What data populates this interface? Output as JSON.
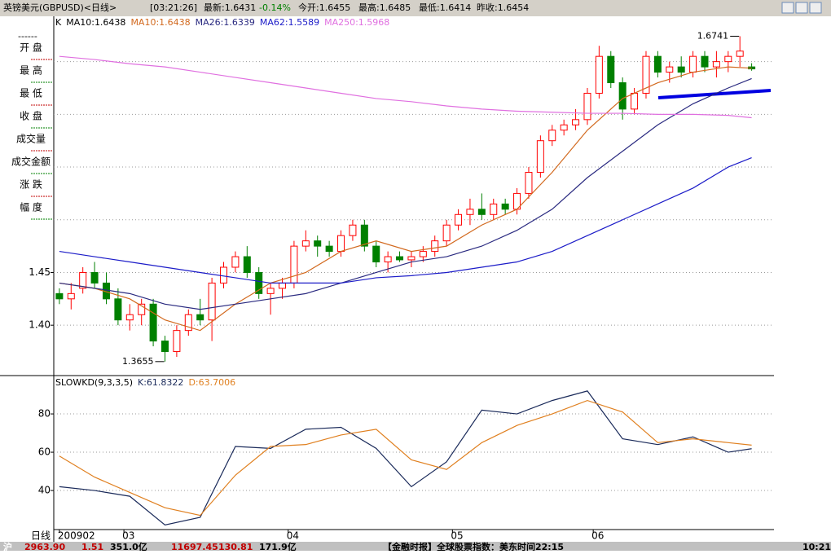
{
  "header": {
    "title": "英镑美元(GBPUSD)<日线>",
    "time": "[03:21:26]",
    "items": [
      "最新:1.6431",
      "-0.14%",
      "今开:1.6455",
      "最高:1.6485",
      "最低:1.6414",
      "昨收:1.6454"
    ]
  },
  "sidebar": {
    "labels": [
      "开 盘",
      "最 高",
      "最 低",
      "收 盘",
      "成交量",
      "成交金额",
      "涨 跌",
      "幅 度"
    ],
    "axis_label": "日线"
  },
  "status": [
    "沪",
    "2963.90",
    "1.51",
    "351.0亿",
    "11697.45",
    "130.81",
    "171.9亿",
    "【金融时报】全球股票指数：美东时间22:15",
    "10:21"
  ],
  "chart_data": [
    {
      "type": "candlestick",
      "legend_text": [
        "K",
        "MA10:1.6438"
      ],
      "up_color": "#ff0000",
      "down_color": "#008000",
      "ylim": [
        1.353,
        1.693
      ],
      "yticks": [
        {
          "value": 1.45,
          "label": "1.45"
        },
        {
          "value": 1.4,
          "label": "1.40"
        }
      ],
      "ygrid": [
        1.4,
        1.45,
        1.5,
        1.55,
        1.6,
        1.65
      ],
      "xlim": [
        -0.2,
        60
      ],
      "candles": [
        [
          1.43,
          1.435,
          1.42,
          1.425
        ],
        [
          1.425,
          1.44,
          1.415,
          1.43
        ],
        [
          1.435,
          1.455,
          1.43,
          1.45
        ],
        [
          1.45,
          1.46,
          1.435,
          1.44
        ],
        [
          1.44,
          1.45,
          1.42,
          1.425
        ],
        [
          1.425,
          1.435,
          1.4,
          1.405
        ],
        [
          1.405,
          1.42,
          1.395,
          1.41
        ],
        [
          1.41,
          1.425,
          1.4,
          1.42
        ],
        [
          1.42,
          1.425,
          1.38,
          1.385
        ],
        [
          1.385,
          1.39,
          1.3655,
          1.375
        ],
        [
          1.375,
          1.4,
          1.37,
          1.395
        ],
        [
          1.395,
          1.415,
          1.39,
          1.41
        ],
        [
          1.41,
          1.425,
          1.4,
          1.405
        ],
        [
          1.405,
          1.445,
          1.385,
          1.44
        ],
        [
          1.44,
          1.46,
          1.435,
          1.455
        ],
        [
          1.455,
          1.47,
          1.45,
          1.465
        ],
        [
          1.465,
          1.475,
          1.445,
          1.45
        ],
        [
          1.45,
          1.455,
          1.425,
          1.43
        ],
        [
          1.43,
          1.44,
          1.41,
          1.435
        ],
        [
          1.435,
          1.445,
          1.425,
          1.44
        ],
        [
          1.44,
          1.48,
          1.435,
          1.475
        ],
        [
          1.475,
          1.49,
          1.47,
          1.48
        ],
        [
          1.48,
          1.485,
          1.465,
          1.475
        ],
        [
          1.475,
          1.48,
          1.465,
          1.47
        ],
        [
          1.47,
          1.49,
          1.465,
          1.485
        ],
        [
          1.485,
          1.5,
          1.48,
          1.495
        ],
        [
          1.495,
          1.5,
          1.47,
          1.475
        ],
        [
          1.475,
          1.48,
          1.455,
          1.46
        ],
        [
          1.46,
          1.47,
          1.45,
          1.465
        ],
        [
          1.465,
          1.47,
          1.46,
          1.462
        ],
        [
          1.462,
          1.47,
          1.455,
          1.465
        ],
        [
          1.465,
          1.475,
          1.46,
          1.47
        ],
        [
          1.47,
          1.485,
          1.465,
          1.48
        ],
        [
          1.48,
          1.5,
          1.475,
          1.495
        ],
        [
          1.495,
          1.51,
          1.49,
          1.505
        ],
        [
          1.505,
          1.52,
          1.495,
          1.51
        ],
        [
          1.51,
          1.525,
          1.5,
          1.505
        ],
        [
          1.505,
          1.52,
          1.5,
          1.515
        ],
        [
          1.515,
          1.52,
          1.505,
          1.51
        ],
        [
          1.51,
          1.53,
          1.505,
          1.525
        ],
        [
          1.525,
          1.55,
          1.52,
          1.545
        ],
        [
          1.545,
          1.58,
          1.54,
          1.575
        ],
        [
          1.575,
          1.59,
          1.57,
          1.585
        ],
        [
          1.585,
          1.595,
          1.58,
          1.59
        ],
        [
          1.59,
          1.605,
          1.585,
          1.595
        ],
        [
          1.595,
          1.625,
          1.59,
          1.62
        ],
        [
          1.62,
          1.665,
          1.615,
          1.655
        ],
        [
          1.655,
          1.66,
          1.625,
          1.63
        ],
        [
          1.63,
          1.635,
          1.595,
          1.605
        ],
        [
          1.605,
          1.625,
          1.6,
          1.62
        ],
        [
          1.62,
          1.66,
          1.615,
          1.655
        ],
        [
          1.655,
          1.66,
          1.635,
          1.64
        ],
        [
          1.64,
          1.65,
          1.63,
          1.645
        ],
        [
          1.645,
          1.655,
          1.635,
          1.64
        ],
        [
          1.64,
          1.66,
          1.635,
          1.655
        ],
        [
          1.655,
          1.66,
          1.64,
          1.645
        ],
        [
          1.645,
          1.66,
          1.635,
          1.65
        ],
        [
          1.65,
          1.66,
          1.64,
          1.655
        ],
        [
          1.655,
          1.6741,
          1.645,
          1.66
        ],
        [
          1.645,
          1.6485,
          1.6414,
          1.6431
        ]
      ],
      "x": [
        0,
        3,
        6,
        9,
        12,
        15,
        18,
        21,
        24,
        27,
        30,
        33,
        36,
        39,
        42,
        45,
        48,
        51,
        54,
        57,
        59
      ],
      "series": [
        {
          "name": "MA10:1.6438",
          "color": "#d2691e",
          "values": [
            1.44,
            1.435,
            1.425,
            1.405,
            1.395,
            1.42,
            1.44,
            1.45,
            1.47,
            1.48,
            1.47,
            1.475,
            1.495,
            1.51,
            1.545,
            1.585,
            1.615,
            1.63,
            1.64,
            1.645,
            1.6438
          ]
        },
        {
          "name": "MA26:1.6339",
          "color": "#2a2a80",
          "values": [
            1.44,
            1.435,
            1.43,
            1.42,
            1.415,
            1.42,
            1.425,
            1.43,
            1.44,
            1.45,
            1.46,
            1.465,
            1.475,
            1.49,
            1.51,
            1.54,
            1.565,
            1.59,
            1.61,
            1.625,
            1.6339
          ]
        },
        {
          "name": "MA62:1.5589",
          "color": "#1c1cc8",
          "values": [
            1.47,
            1.465,
            1.46,
            1.455,
            1.45,
            1.445,
            1.44,
            1.44,
            1.44,
            1.445,
            1.447,
            1.45,
            1.455,
            1.46,
            1.47,
            1.485,
            1.5,
            1.515,
            1.53,
            1.55,
            1.5589
          ]
        },
        {
          "name": "MA250:1.5968",
          "color": "#e070e0",
          "values": [
            1.655,
            1.652,
            1.648,
            1.645,
            1.64,
            1.635,
            1.63,
            1.625,
            1.62,
            1.615,
            1.612,
            1.608,
            1.605,
            1.603,
            1.602,
            1.601,
            1.601,
            1.6,
            1.6,
            1.599,
            1.5968
          ]
        }
      ],
      "annotations": [
        {
          "text": 1.6741,
          "x": 58,
          "side": "high"
        },
        {
          "text": 1.3655,
          "x": 9,
          "side": "low"
        }
      ]
    },
    {
      "type": "line",
      "title": "SLOWKD(9,3,3,5)",
      "ylim": [
        19.6,
        99.6
      ],
      "yticks": [
        80,
        60,
        40
      ],
      "xlim": [
        -0.2,
        60
      ],
      "xticks": [
        {
          "value": 0,
          "label": "200902"
        },
        {
          "value": 5.5,
          "label": "03"
        },
        {
          "value": 19.5,
          "label": "04"
        },
        {
          "value": 33.5,
          "label": "05"
        },
        {
          "value": 45.5,
          "label": "06"
        }
      ],
      "x": [
        0,
        3,
        6,
        9,
        12,
        15,
        18,
        21,
        24,
        27,
        30,
        33,
        36,
        39,
        42,
        45,
        48,
        51,
        54,
        57,
        59
      ],
      "series": [
        {
          "name": "K:61.8322",
          "color": "#1a2a5a",
          "values": [
            42,
            40,
            37,
            22,
            26,
            63,
            62,
            72,
            73,
            62,
            42,
            55,
            82,
            80,
            87,
            92,
            67,
            64,
            68,
            60,
            61.8322
          ]
        },
        {
          "name": "D:63.7006",
          "color": "#e08020",
          "values": [
            58,
            47,
            39,
            31,
            27,
            48,
            63,
            64,
            69,
            72,
            56,
            51,
            65,
            74,
            80,
            87,
            81,
            65,
            67,
            65,
            63.7006
          ]
        }
      ]
    }
  ]
}
